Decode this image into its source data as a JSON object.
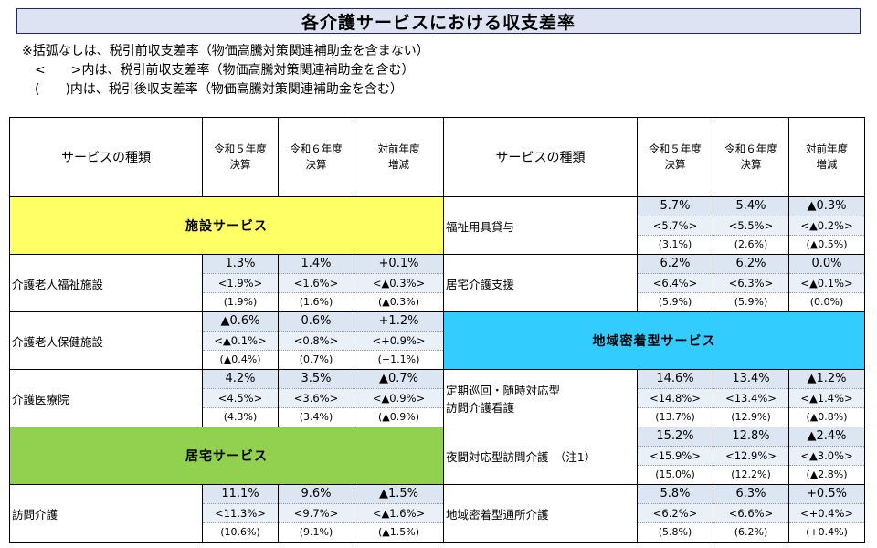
{
  "title": "各介護サービスにおける収支差率",
  "notes": [
    "※括弧なしは、税引前収支差率（物価高騰対策関連補助金を含まない）",
    "　<　　>内は、税引前収支差率（物価高騰対策関連補助金を含む）",
    "　(　　)内は、税引後収支差率（物価高騰対策関連補助金を含む）"
  ],
  "headers": {
    "service_type": "サービスの種類",
    "col1_line1": "令和５年度",
    "col1_line2": "決算",
    "col2_line1": "令和６年度",
    "col2_line2": "決算",
    "col3_line1": "対前年度",
    "col3_line2": "増減"
  },
  "sections": {
    "facility": "施設サービス",
    "home": "居宅サービス",
    "community": "地域密着型サービス"
  },
  "left_rows": [
    {
      "name": "介護老人福祉施設",
      "v": [
        [
          "1.3%",
          "1.4%",
          "+0.1%"
        ],
        [
          "<1.9%>",
          "<1.6%>",
          "<▲0.3%>"
        ],
        [
          "(1.9%)",
          "(1.6%)",
          "(▲0.3%)"
        ]
      ]
    },
    {
      "name": "介護老人保健施設",
      "v": [
        [
          "▲0.6%",
          "0.6%",
          "+1.2%"
        ],
        [
          "<▲0.1%>",
          "<0.8%>",
          "<+0.9%>"
        ],
        [
          "(▲0.4%)",
          "(0.7%)",
          "(+1.1%)"
        ]
      ]
    },
    {
      "name": "介護医療院",
      "v": [
        [
          "4.2%",
          "3.5%",
          "▲0.7%"
        ],
        [
          "<4.5%>",
          "<3.6%>",
          "<▲0.9%>"
        ],
        [
          "(4.3%)",
          "(3.4%)",
          "(▲0.9%)"
        ]
      ]
    },
    {
      "name": "訪問介護",
      "v": [
        [
          "11.1%",
          "9.6%",
          "▲1.5%"
        ],
        [
          "<11.3%>",
          "<9.7%>",
          "<▲1.6%>"
        ],
        [
          "(10.6%)",
          "(9.1%)",
          "(▲1.5%)"
        ]
      ]
    }
  ],
  "right_rows": [
    {
      "name": "福祉用具貸与",
      "v": [
        [
          "5.7%",
          "5.4%",
          "▲0.3%"
        ],
        [
          "<5.7%>",
          "<5.5%>",
          "<▲0.2%>"
        ],
        [
          "(3.1%)",
          "(2.6%)",
          "(▲0.5%)"
        ]
      ]
    },
    {
      "name": "居宅介護支援",
      "v": [
        [
          "6.2%",
          "6.2%",
          "0.0%"
        ],
        [
          "<6.4%>",
          "<6.3%>",
          "<▲0.1%>"
        ],
        [
          "(5.9%)",
          "(5.9%)",
          "(0.0%)"
        ]
      ]
    },
    {
      "name_line1": "定期巡回・随時対応型",
      "name_line2": "訪問介護看護",
      "v": [
        [
          "14.6%",
          "13.4%",
          "▲1.2%"
        ],
        [
          "<14.8%>",
          "<13.4%>",
          "<▲1.4%>"
        ],
        [
          "(13.7%)",
          "(12.9%)",
          "(▲0.8%)"
        ]
      ]
    },
    {
      "name": "夜間対応型訪問介護　（注1）",
      "v": [
        [
          "15.2%",
          "12.8%",
          "▲2.4%"
        ],
        [
          "<15.9%>",
          "<12.9%>",
          "<▲3.0%>"
        ],
        [
          "(15.0%)",
          "(12.2%)",
          "(▲2.8%)"
        ]
      ]
    },
    {
      "name": "地域密着型通所介護",
      "v": [
        [
          "5.8%",
          "6.3%",
          "+0.5%"
        ],
        [
          "<6.2%>",
          "<6.6%>",
          "<+0.4%>"
        ],
        [
          "(5.8%)",
          "(6.2%)",
          "(+0.4%)"
        ]
      ]
    }
  ]
}
